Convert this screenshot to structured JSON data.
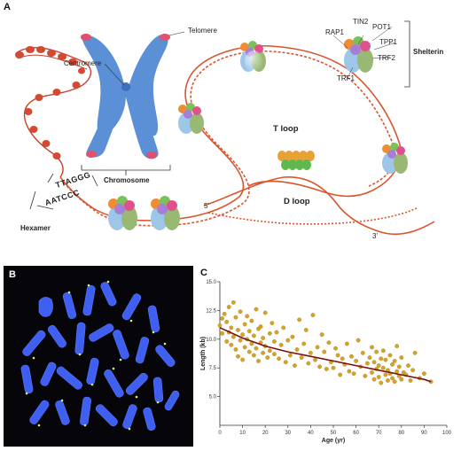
{
  "panelA": {
    "letter": "A",
    "labels": {
      "telomere": "Telomere",
      "centromere": "Centromere",
      "chromosome": "Chromosome",
      "hexamer": "Hexamer",
      "tloop": "T loop",
      "dloop": "D loop",
      "shelterin": "Shelterin",
      "rap1": "RAP1",
      "tin2": "TIN2",
      "pot1": "POT1",
      "tpp1": "TPP1",
      "trf2": "TRF2",
      "trf1": "TRF1",
      "five_prime": "5'",
      "three_prime": "3'",
      "seq_top": "TTAGGG",
      "seq_bottom": "AATCCC"
    },
    "colors": {
      "dna": "#d9552e",
      "chromosome": "#5b8fd6",
      "telomere_tip": "#e0506f"
    }
  },
  "panelB": {
    "letter": "B",
    "background": "#05050a",
    "chromosome_color": "#3f5ff0"
  },
  "panelC": {
    "letter": "C",
    "chart_data": {
      "type": "scatter",
      "title": "",
      "xlabel": "Age (yr)",
      "ylabel": "Length (kb)",
      "xlim": [
        0,
        100
      ],
      "ylim": [
        2.5,
        15.0
      ],
      "xticks": [
        0,
        10,
        20,
        30,
        40,
        50,
        60,
        70,
        80,
        90,
        100
      ],
      "yticks": [
        5.0,
        7.5,
        10.0,
        12.5,
        15.0
      ],
      "grid": false,
      "point_color": "#d4a42a",
      "trend_color": "#7a1010",
      "trend": [
        [
          0,
          11.0
        ],
        [
          10,
          10.1
        ],
        [
          20,
          9.4
        ],
        [
          30,
          8.9
        ],
        [
          40,
          8.5
        ],
        [
          50,
          8.1
        ],
        [
          60,
          7.7
        ],
        [
          70,
          7.3
        ],
        [
          80,
          6.9
        ],
        [
          90,
          6.5
        ],
        [
          93,
          6.3
        ]
      ],
      "points": [
        [
          0,
          11.2
        ],
        [
          1,
          11.8
        ],
        [
          1,
          10.5
        ],
        [
          2,
          12.2
        ],
        [
          3,
          9.8
        ],
        [
          3,
          11.5
        ],
        [
          4,
          10.6
        ],
        [
          4,
          12.8
        ],
        [
          5,
          9.5
        ],
        [
          5,
          11.0
        ],
        [
          6,
          10.2
        ],
        [
          6,
          13.2
        ],
        [
          7,
          9.1
        ],
        [
          7,
          11.9
        ],
        [
          8,
          10.8
        ],
        [
          8,
          8.5
        ],
        [
          9,
          12.4
        ],
        [
          9,
          9.9
        ],
        [
          10,
          10.4
        ],
        [
          10,
          8.2
        ],
        [
          11,
          11.3
        ],
        [
          11,
          9.3
        ],
        [
          12,
          10.0
        ],
        [
          12,
          12.0
        ],
        [
          13,
          8.9
        ],
        [
          13,
          10.7
        ],
        [
          14,
          9.6
        ],
        [
          14,
          11.6
        ],
        [
          15,
          8.6
        ],
        [
          15,
          10.3
        ],
        [
          16,
          9.2
        ],
        [
          16,
          12.6
        ],
        [
          17,
          10.9
        ],
        [
          17,
          8.1
        ],
        [
          18,
          9.7
        ],
        [
          18,
          11.1
        ],
        [
          19,
          8.8
        ],
        [
          19,
          10.1
        ],
        [
          20,
          9.4
        ],
        [
          20,
          12.3
        ],
        [
          21,
          8.4
        ],
        [
          22,
          10.5
        ],
        [
          22,
          9.0
        ],
        [
          23,
          11.4
        ],
        [
          24,
          8.7
        ],
        [
          24,
          9.8
        ],
        [
          25,
          10.6
        ],
        [
          26,
          8.3
        ],
        [
          27,
          9.5
        ],
        [
          28,
          11.0
        ],
        [
          29,
          8.0
        ],
        [
          30,
          9.9
        ],
        [
          31,
          8.6
        ],
        [
          32,
          10.2
        ],
        [
          33,
          7.7
        ],
        [
          34,
          9.1
        ],
        [
          35,
          11.7
        ],
        [
          36,
          8.4
        ],
        [
          37,
          9.6
        ],
        [
          38,
          10.8
        ],
        [
          39,
          7.9
        ],
        [
          40,
          8.8
        ],
        [
          41,
          12.1
        ],
        [
          42,
          8.2
        ],
        [
          43,
          9.3
        ],
        [
          44,
          7.6
        ],
        [
          45,
          10.4
        ],
        [
          46,
          8.9
        ],
        [
          47,
          7.4
        ],
        [
          48,
          9.7
        ],
        [
          49,
          8.0
        ],
        [
          50,
          7.5
        ],
        [
          51,
          9.2
        ],
        [
          52,
          8.6
        ],
        [
          53,
          6.9
        ],
        [
          54,
          8.3
        ],
        [
          55,
          7.8
        ],
        [
          56,
          9.6
        ],
        [
          57,
          7.2
        ],
        [
          58,
          8.5
        ],
        [
          59,
          7.0
        ],
        [
          60,
          8.1
        ],
        [
          61,
          9.9
        ],
        [
          62,
          7.6
        ],
        [
          63,
          8.8
        ],
        [
          64,
          6.8
        ],
        [
          65,
          7.9
        ],
        [
          66,
          8.4
        ],
        [
          67,
          7.1
        ],
        [
          67,
          9.3
        ],
        [
          68,
          6.5
        ],
        [
          68,
          8.0
        ],
        [
          69,
          7.4
        ],
        [
          69,
          8.9
        ],
        [
          70,
          6.7
        ],
        [
          70,
          7.7
        ],
        [
          71,
          8.3
        ],
        [
          71,
          6.2
        ],
        [
          72,
          7.5
        ],
        [
          72,
          9.0
        ],
        [
          73,
          6.9
        ],
        [
          73,
          8.2
        ],
        [
          74,
          7.3
        ],
        [
          74,
          6.4
        ],
        [
          75,
          8.6
        ],
        [
          75,
          7.0
        ],
        [
          76,
          6.6
        ],
        [
          76,
          7.8
        ],
        [
          77,
          8.1
        ],
        [
          77,
          6.3
        ],
        [
          78,
          7.2
        ],
        [
          78,
          9.4
        ],
        [
          79,
          6.8
        ],
        [
          79,
          7.6
        ],
        [
          80,
          6.5
        ],
        [
          80,
          8.4
        ],
        [
          81,
          7.1
        ],
        [
          82,
          6.9
        ],
        [
          83,
          7.7
        ],
        [
          84,
          6.4
        ],
        [
          85,
          7.3
        ],
        [
          86,
          8.8
        ],
        [
          88,
          6.6
        ],
        [
          90,
          7.0
        ],
        [
          93,
          6.3
        ]
      ]
    }
  }
}
